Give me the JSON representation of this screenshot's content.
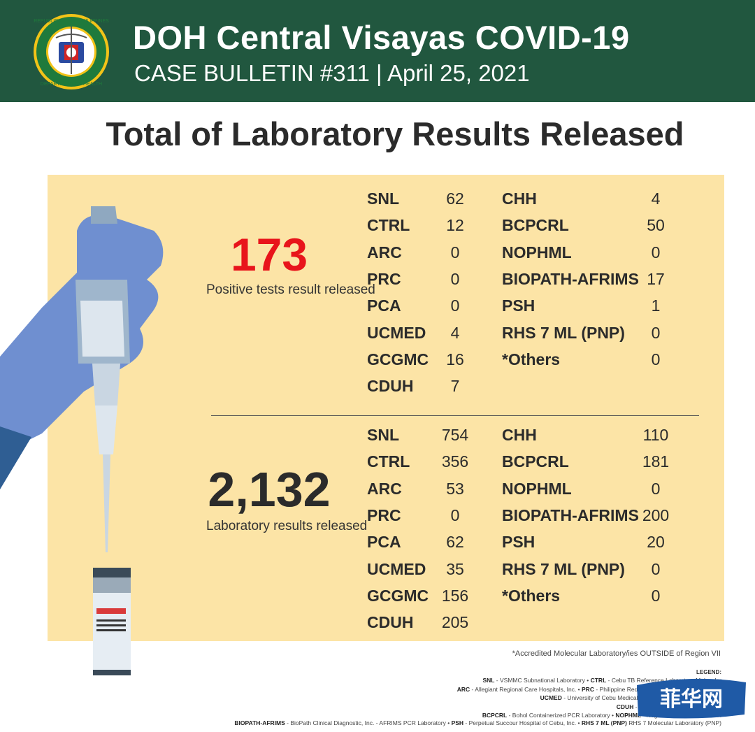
{
  "header": {
    "title": "DOH Central Visayas COVID-19",
    "subtitle": "CASE BULLETIN #311 | April 25, 2021",
    "seal_top_text": "REPUBLIC OF THE PHILIPPINES",
    "seal_bottom_text": "DEPARTMENT OF HEALTH"
  },
  "main_title": "Total of Laboratory Results Released",
  "positive": {
    "number": "173",
    "label": "Positive tests result released",
    "left_col": [
      {
        "lab": "SNL",
        "count": "62"
      },
      {
        "lab": "CTRL",
        "count": "12"
      },
      {
        "lab": "ARC",
        "count": "0"
      },
      {
        "lab": "PRC",
        "count": "0"
      },
      {
        "lab": "PCA",
        "count": "0"
      },
      {
        "lab": "UCMED",
        "count": "4"
      },
      {
        "lab": "GCGMC",
        "count": "16"
      },
      {
        "lab": "CDUH",
        "count": "7"
      }
    ],
    "right_col": [
      {
        "lab": "CHH",
        "count": "4"
      },
      {
        "lab": "BCPCRL",
        "count": "50"
      },
      {
        "lab": "NOPHML",
        "count": "0"
      },
      {
        "lab": "BIOPATH-AFRIMS",
        "count": "17"
      },
      {
        "lab": "PSH",
        "count": "1"
      },
      {
        "lab": "RHS 7 ML (PNP)",
        "count": "0"
      },
      {
        "lab": "*Others",
        "count": "0"
      }
    ]
  },
  "total": {
    "number": "2,132",
    "label": "Laboratory results released",
    "left_col": [
      {
        "lab": "SNL",
        "count": "754"
      },
      {
        "lab": "CTRL",
        "count": "356"
      },
      {
        "lab": "ARC",
        "count": "53"
      },
      {
        "lab": "PRC",
        "count": "0"
      },
      {
        "lab": "PCA",
        "count": "62"
      },
      {
        "lab": "UCMED",
        "count": "35"
      },
      {
        "lab": "GCGMC",
        "count": "156"
      },
      {
        "lab": "CDUH",
        "count": "205"
      }
    ],
    "right_col": [
      {
        "lab": "CHH",
        "count": "110"
      },
      {
        "lab": "BCPCRL",
        "count": "181"
      },
      {
        "lab": "NOPHML",
        "count": "0"
      },
      {
        "lab": "BIOPATH-AFRIMS",
        "count": "200"
      },
      {
        "lab": "PSH",
        "count": "20"
      },
      {
        "lab": "RHS 7 ML (PNP)",
        "count": "0"
      },
      {
        "lab": "*Others",
        "count": "0"
      }
    ]
  },
  "footnote": "*Accredited Molecular Laboratory/ies OUTSIDE of Region VII",
  "legend": {
    "title": "LEGEND:",
    "lines": [
      "<b>SNL</b> - VSMMC Subnational Laboratory • <b>CTRL</b> - Cebu TB Reference Laboratory Molecular",
      "<b>ARC</b> - Allegiant Regional Care Hospitals, Inc. • <b>PRC</b> - Philippine Red Cross • <b>PCA</b> - Prime Care Alph",
      "<b>UCMED</b> - University of Cebu Medical Center • <b>GCGMH</b> - Gov. Celest",
      "<b>CDUH</b> - Cebu Doctors University Hospit",
      "<b>BCPCRL</b> - Bohol Containerized PCR Laboratory • <b>NOPHML</b> - Negros Oriental Provincial H",
      "<b>BIOPATH-AFRIMS</b> - BioPath Clinical Diagnostic, Inc. - AFRIMS PCR Laboratory • <b>PSH</b> - Perpetual Succour Hospital of Cebu, Inc. • <b>RHS 7 ML (PNP)</b> RHS 7 Molecular Laboratory (PNP)"
    ]
  },
  "watermark_text": "菲华网",
  "colors": {
    "header_bg": "#21573f",
    "panel_bg": "#fce4a6",
    "accent_red": "#e8141b",
    "glove_blue": "#6f8fd0",
    "watermark_blue": "#1f5aa6"
  }
}
